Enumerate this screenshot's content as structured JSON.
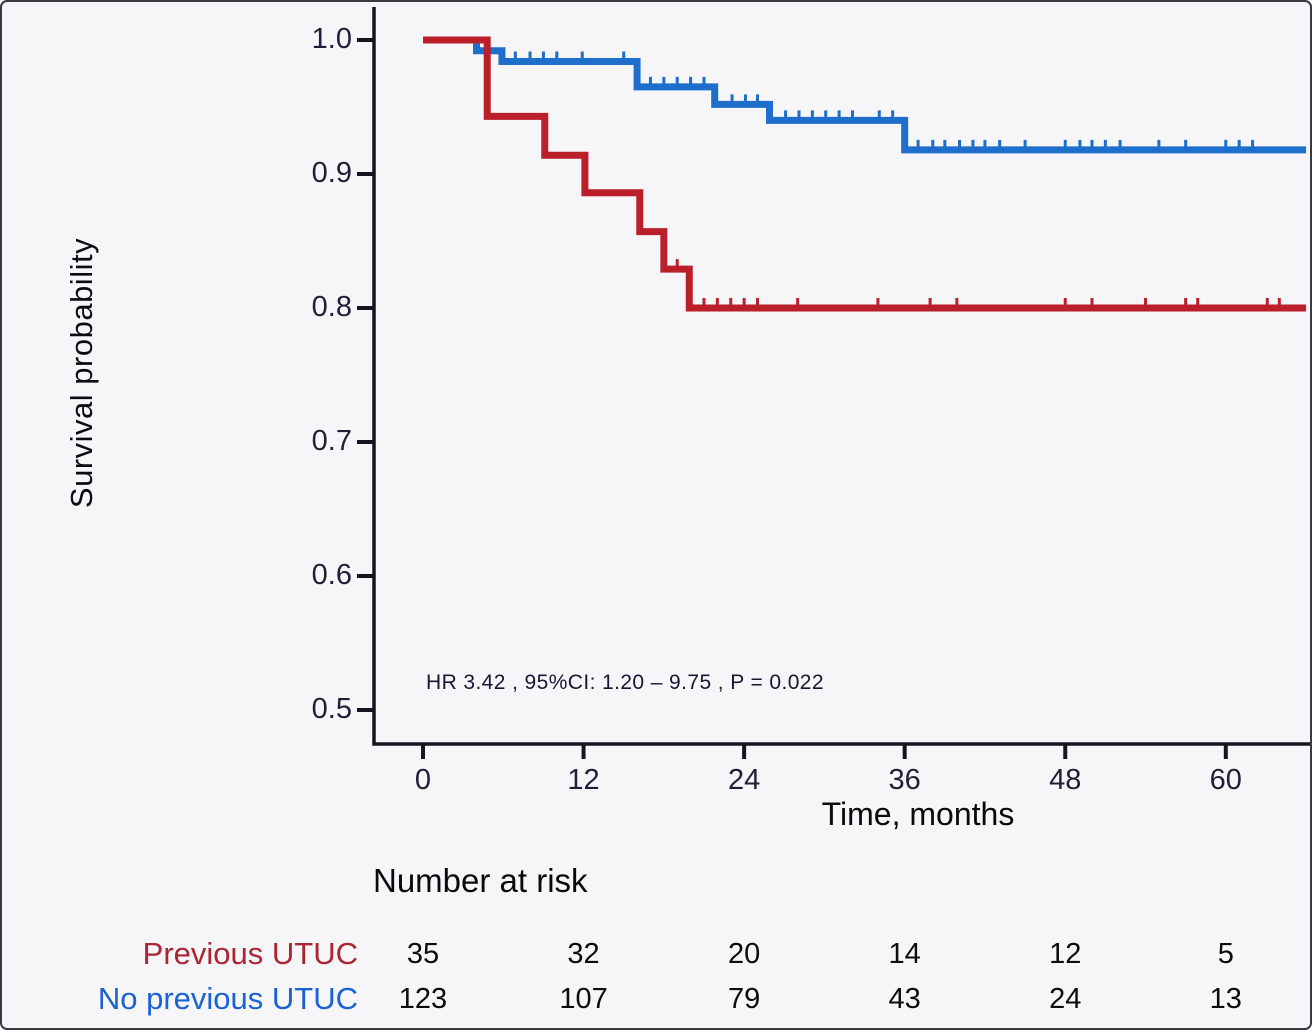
{
  "chart_data": {
    "type": "line",
    "subtype": "kaplan-meier-step-curves",
    "title": "",
    "xlabel": "Time, months",
    "ylabel": "Survival probability",
    "xlim": [
      0,
      66
    ],
    "ylim": [
      0.47,
      1.02
    ],
    "grid": "off",
    "legend": "none",
    "axis_color": "#18131f",
    "x_ticks": [
      {
        "label": "0",
        "value": 0
      },
      {
        "label": "12",
        "value": 12
      },
      {
        "label": "24",
        "value": 24
      },
      {
        "label": "36",
        "value": 36
      },
      {
        "label": "48",
        "value": 48
      },
      {
        "label": "60",
        "value": 60
      }
    ],
    "y_ticks": [
      {
        "label": "1.0",
        "value": 1.0
      },
      {
        "label": "0.9",
        "value": 0.9
      },
      {
        "label": "0.8",
        "value": 0.8
      },
      {
        "label": "0.7",
        "value": 0.7
      },
      {
        "label": "0.6",
        "value": 0.6
      },
      {
        "label": "0.5",
        "value": 0.5
      }
    ],
    "annotation": "HR  3.42 , 95%CI:  1.20 – 9.75 ,  P = 0.022",
    "series": [
      {
        "name": "No previous UTUC",
        "color": "#1e6ecb",
        "start": [
          0,
          1.0
        ],
        "drops": [
          [
            4.0,
            0.992
          ],
          [
            5.9,
            0.984
          ],
          [
            16.0,
            0.965
          ],
          [
            21.8,
            0.952
          ],
          [
            25.9,
            0.94
          ],
          [
            36.0,
            0.918
          ]
        ],
        "end_t": 66,
        "censor_times": [
          6.9,
          8.0,
          9.0,
          10.0,
          11.9,
          15.0,
          17.0,
          18.0,
          19.0,
          20.0,
          21.0,
          23.1,
          24.1,
          25.0,
          27.1,
          28.1,
          29.1,
          30.1,
          31.1,
          32.1,
          34.1,
          35.1,
          37.0,
          38.1,
          39.0,
          40.1,
          41.1,
          42.0,
          43.1,
          45.0,
          48.0,
          49.1,
          50.0,
          51.0,
          52.1,
          55.0,
          57.0,
          60.0,
          61.0,
          62.0
        ]
      },
      {
        "name": "Previous UTUC",
        "color": "#bb1f2a",
        "start": [
          0,
          1.0
        ],
        "drops": [
          [
            4.8,
            0.943
          ],
          [
            9.1,
            0.914
          ],
          [
            12.1,
            0.886
          ],
          [
            16.2,
            0.857
          ],
          [
            18.0,
            0.829
          ],
          [
            19.9,
            0.8
          ]
        ],
        "end_t": 66,
        "censor_times": [
          19.0,
          21.0,
          22.0,
          23.0,
          24.0,
          25.0,
          28.0,
          34.0,
          37.9,
          39.9,
          48.0,
          50.0,
          54.0,
          57.0,
          57.9,
          63.1,
          64.0
        ]
      }
    ]
  },
  "risk_table": {
    "title": "Number at risk",
    "time_points": [
      0,
      12,
      24,
      36,
      48,
      60
    ],
    "rows": [
      {
        "label": "Previous UTUC",
        "color": "#ab2630",
        "values": [
          "35",
          "32",
          "20",
          "14",
          "12",
          "5"
        ]
      },
      {
        "label": "No previous UTUC",
        "color": "#1a62d4",
        "values": [
          "123",
          "107",
          "79",
          "43",
          "24",
          "13"
        ]
      }
    ]
  }
}
